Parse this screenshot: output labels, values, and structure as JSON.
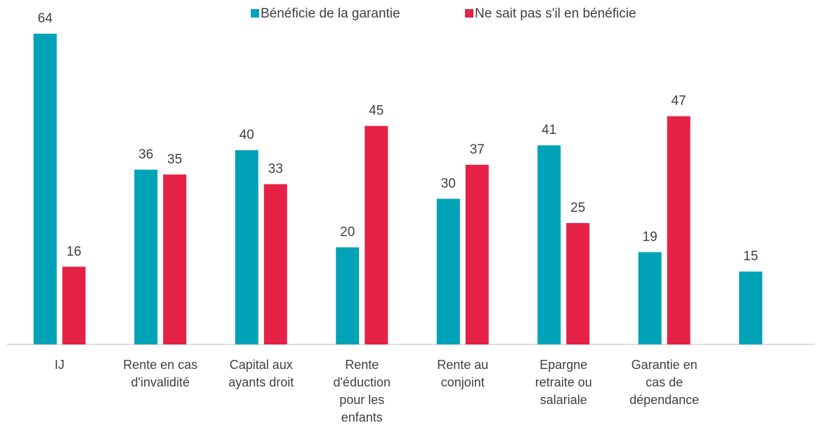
{
  "chart_data": {
    "type": "bar",
    "categories": [
      "IJ",
      "Rente en cas d'invalidité",
      "Capital aux ayants droit",
      "Rente d'éduction pour les enfants",
      "Rente au conjoint",
      "Epargne retraite ou salariale",
      "Garantie en cas de dépendance",
      null
    ],
    "series": [
      {
        "name": "Bénéficie de la garantie",
        "color": "#00a2b7",
        "values": [
          64,
          36,
          40,
          20,
          30,
          41,
          19,
          15
        ]
      },
      {
        "name": "Ne sait pas s'il en bénéficie",
        "color": "#e52145",
        "values": [
          16,
          35,
          33,
          45,
          37,
          25,
          47,
          null
        ]
      }
    ],
    "legend": "top"
  }
}
